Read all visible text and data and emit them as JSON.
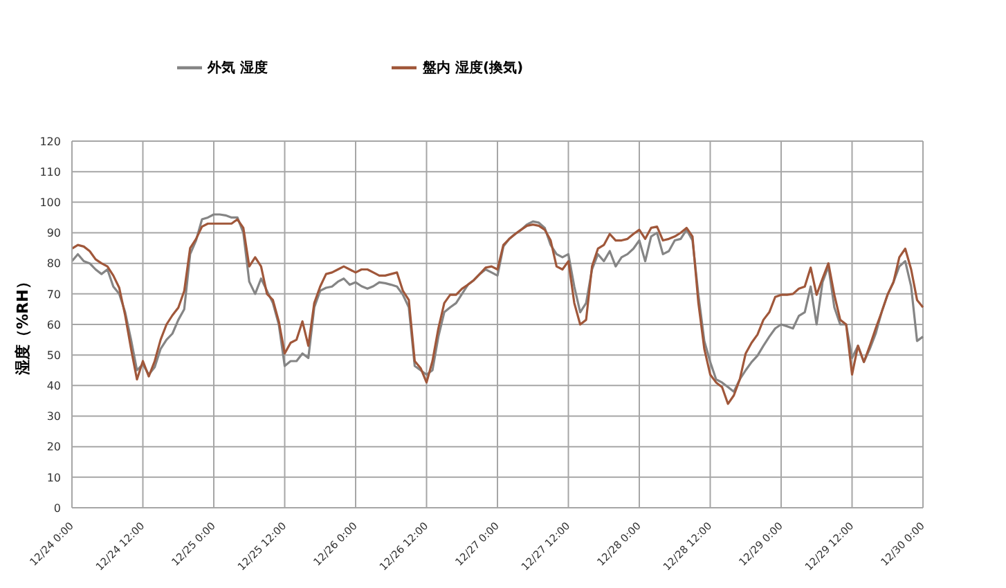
{
  "chart_data": {
    "type": "line",
    "ylabel": "湿度（%RH）",
    "categories": [
      "12/24 0:00",
      null,
      null,
      null,
      null,
      null,
      null,
      null,
      null,
      null,
      null,
      null,
      "12/24 12:00",
      null,
      null,
      null,
      null,
      null,
      null,
      null,
      null,
      null,
      null,
      null,
      "12/25 0:00",
      null,
      null,
      null,
      null,
      null,
      null,
      null,
      null,
      null,
      null,
      null,
      "12/25 12:00",
      null,
      null,
      null,
      null,
      null,
      null,
      null,
      null,
      null,
      null,
      null,
      "12/26 0:00",
      null,
      null,
      null,
      null,
      null,
      null,
      null,
      null,
      null,
      null,
      null,
      "12/26 12:00",
      null,
      null,
      null,
      null,
      null,
      null,
      null,
      null,
      null,
      null,
      null,
      "12/27 0:00",
      null,
      null,
      null,
      null,
      null,
      null,
      null,
      null,
      null,
      null,
      null,
      "12/27 12:00",
      null,
      null,
      null,
      null,
      null,
      null,
      null,
      null,
      null,
      null,
      null,
      "12/28 0:00",
      null,
      null,
      null,
      null,
      null,
      null,
      null,
      null,
      null,
      null,
      null,
      "12/28 12:00",
      null,
      null,
      null,
      null,
      null,
      null,
      null,
      null,
      null,
      null,
      null,
      "12/29 0:00",
      null,
      null,
      null,
      null,
      null,
      null,
      null,
      null,
      null,
      null,
      null,
      "12/29 12:00",
      null,
      null,
      null,
      null,
      null,
      null,
      null,
      null,
      null,
      null,
      null,
      "12/30 0:00"
    ],
    "series": [
      {
        "name": "外気 湿度",
        "color": "#858585",
        "values": [
          80.7,
          83,
          80.7,
          80,
          78,
          76.5,
          78,
          72.4,
          70,
          64,
          55,
          45,
          47,
          43.6,
          46,
          52,
          55,
          57,
          61.5,
          65,
          83,
          87.5,
          94.4,
          95,
          96,
          96,
          95.7,
          95,
          95,
          90,
          74,
          70,
          75,
          71,
          67,
          60,
          46.4,
          48,
          48,
          50.5,
          49,
          65.6,
          71,
          72,
          72.4,
          74,
          75,
          73,
          73.8,
          72.5,
          71.7,
          72.5,
          73.8,
          73.5,
          73,
          72.4,
          69.7,
          65.6,
          46.4,
          45,
          43.6,
          45,
          56,
          64,
          65.6,
          67,
          70,
          73,
          74.5,
          76.5,
          78,
          77,
          76,
          85.5,
          88,
          89.6,
          91,
          92.7,
          93.7,
          93.3,
          91.6,
          86,
          83,
          82,
          83,
          72.4,
          64,
          67,
          78,
          83,
          80.7,
          84,
          79,
          82,
          83,
          84.8,
          87.5,
          80.7,
          88.8,
          90,
          83,
          84,
          87.5,
          88,
          91,
          87.5,
          69.7,
          54.6,
          47.7,
          42,
          41,
          39.5,
          38,
          42,
          45,
          47.7,
          49.8,
          53,
          56,
          58.7,
          60,
          59.4,
          58.7,
          62.8,
          64,
          72.4,
          60,
          73.8,
          79,
          65.6,
          60,
          60,
          49,
          53,
          47.7,
          52,
          57,
          64,
          69.7,
          73.8,
          79,
          80.7,
          72.4,
          54.6,
          56
        ]
      },
      {
        "name": "盤内 湿度(換気)",
        "color": "#a0573a",
        "values": [
          84.8,
          86,
          85.5,
          84,
          81.3,
          80,
          79,
          76,
          72,
          63,
          52,
          42,
          48,
          43,
          48,
          55,
          60,
          63,
          65.5,
          71,
          85,
          88,
          92,
          93,
          93,
          93,
          93,
          93,
          94.4,
          91.6,
          79,
          82,
          79,
          70,
          68,
          61,
          50.5,
          54,
          55,
          61,
          53,
          67,
          72.4,
          76.5,
          77,
          78,
          79,
          78,
          77,
          78,
          78,
          77,
          76,
          76,
          76.5,
          77,
          71,
          68,
          48,
          45.7,
          41,
          48,
          58.7,
          67,
          69.7,
          69.7,
          71.7,
          73,
          74.5,
          76.5,
          78.6,
          79,
          78,
          86,
          88,
          89.6,
          91,
          92.3,
          92.7,
          92.3,
          91,
          87.5,
          79,
          78,
          80.7,
          67,
          60,
          61.5,
          79,
          84.8,
          86,
          89.6,
          87.5,
          87.5,
          88,
          89.6,
          91,
          88,
          91.6,
          92,
          87.5,
          88,
          88.8,
          90,
          91.6,
          88.8,
          67,
          52,
          43.6,
          41,
          39.5,
          34,
          36.8,
          42,
          50.5,
          54,
          56.7,
          61.5,
          64,
          69,
          69.7,
          69.7,
          70,
          71.7,
          72.4,
          78.6,
          69.7,
          75,
          80,
          69.7,
          61.5,
          60,
          43.6,
          53,
          47.7,
          53,
          58.7,
          64,
          69.7,
          73.8,
          82,
          84.8,
          78,
          68,
          65.6
        ]
      }
    ],
    "ylim": [
      0,
      120
    ],
    "yticks": [
      0,
      10,
      20,
      30,
      40,
      50,
      60,
      70,
      80,
      90,
      100,
      110,
      120
    ],
    "grid": true,
    "legend": "top",
    "marker": "none",
    "line_style": "solid"
  }
}
